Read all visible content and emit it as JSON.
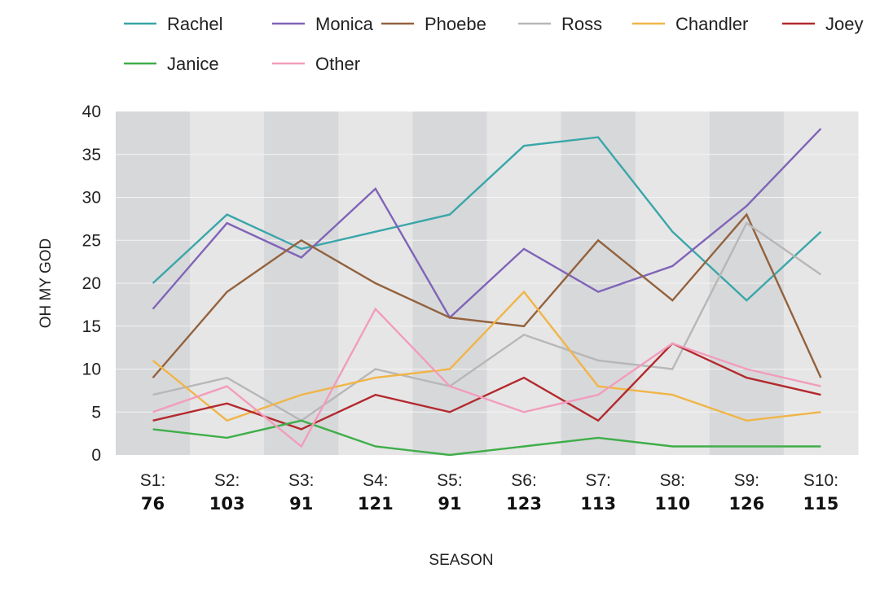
{
  "chart_data": {
    "type": "line",
    "title": "",
    "xlabel": "SEASON",
    "ylabel": "OH MY GOD",
    "ylim": [
      0,
      40
    ],
    "yticks": [
      "0",
      "5",
      "10",
      "15",
      "20",
      "25",
      "30",
      "35",
      "40"
    ],
    "categories": [
      {
        "label": "S1:",
        "total": "76"
      },
      {
        "label": "S2:",
        "total": "103"
      },
      {
        "label": "S3:",
        "total": "91"
      },
      {
        "label": "S4:",
        "total": "121"
      },
      {
        "label": "S5:",
        "total": "91"
      },
      {
        "label": "S6:",
        "total": "123"
      },
      {
        "label": "S7:",
        "total": "113"
      },
      {
        "label": "S8:",
        "total": "110"
      },
      {
        "label": "S9:",
        "total": "126"
      },
      {
        "label": "S10:",
        "total": "115"
      }
    ],
    "legend_position": "top",
    "series": [
      {
        "name": "Rachel",
        "color": "#3aa6a9",
        "values": [
          20,
          28,
          24,
          26,
          28,
          36,
          37,
          26,
          18,
          26
        ]
      },
      {
        "name": "Monica",
        "color": "#8064b8",
        "values": [
          17,
          27,
          23,
          31,
          16,
          24,
          19,
          22,
          29,
          38
        ]
      },
      {
        "name": "Phoebe",
        "color": "#93623d",
        "values": [
          9,
          19,
          25,
          20,
          16,
          15,
          25,
          18,
          28,
          9
        ]
      },
      {
        "name": "Ross",
        "color": "#b7b7b7",
        "values": [
          7,
          9,
          4,
          10,
          8,
          14,
          11,
          10,
          27,
          21
        ]
      },
      {
        "name": "Chandler",
        "color": "#f0b548",
        "values": [
          11,
          4,
          7,
          9,
          10,
          19,
          8,
          7,
          4,
          5
        ]
      },
      {
        "name": "Joey",
        "color": "#b3292e",
        "values": [
          4,
          6,
          3,
          7,
          5,
          9,
          4,
          13,
          9,
          7
        ]
      },
      {
        "name": "Janice",
        "color": "#3fae49",
        "values": [
          3,
          2,
          4,
          1,
          0,
          1,
          2,
          1,
          1,
          1
        ]
      },
      {
        "name": "Other",
        "color": "#f29cbd",
        "values": [
          5,
          8,
          1,
          17,
          8,
          5,
          7,
          13,
          10,
          8
        ]
      }
    ],
    "band_colors": {
      "dark": "#d7d8da",
      "light": "#e6e6e6",
      "grid": "#f4f4f4"
    }
  }
}
